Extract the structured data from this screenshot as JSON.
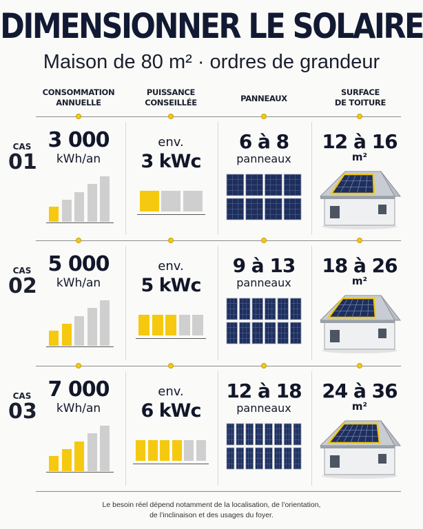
{
  "title": "DIMENSIONNER LE SOLAIRE",
  "subtitle": "Maison de 80 m² · ordres de grandeur",
  "columns": {
    "consumption": [
      "CONSOMMATION",
      "ANNUELLE"
    ],
    "power": [
      "PUISSANCE",
      "CONSEILLÉE"
    ],
    "panels": [
      "PANNEAUX"
    ],
    "roof": [
      "SURFACE",
      "DE TOITURE"
    ]
  },
  "cases": [
    {
      "cas_label": "CAS",
      "cas_num": "01",
      "consumption_value": "3 000",
      "consumption_unit": "kWh/an",
      "consumption_bars_yellow": 1,
      "power_prefix": "env.",
      "power_value": "3 kWc",
      "power_blocks_yellow": 1,
      "power_blocks_total": 3,
      "panels_value": "6 à 8",
      "panels_unit": "panneaux",
      "panel_grid": [
        4,
        2
      ],
      "roof_value": "12 à 16",
      "roof_unit": "m²"
    },
    {
      "cas_label": "CAS",
      "cas_num": "02",
      "consumption_value": "5 000",
      "consumption_unit": "kWh/an",
      "consumption_bars_yellow": 2,
      "power_prefix": "env.",
      "power_value": "5 kWc",
      "power_blocks_yellow": 3,
      "power_blocks_total": 5,
      "panels_value": "9 à 13",
      "panels_unit": "panneaux",
      "panel_grid": [
        6,
        2
      ],
      "roof_value": "18 à 26",
      "roof_unit": "m²"
    },
    {
      "cas_label": "CAS",
      "cas_num": "03",
      "consumption_value": "7 000",
      "consumption_unit": "kWh/an",
      "consumption_bars_yellow": 3,
      "power_prefix": "env.",
      "power_value": "6 kWc",
      "power_blocks_yellow": 4,
      "power_blocks_total": 6,
      "panels_value": "12 à 18",
      "panels_unit": "panneaux",
      "panel_grid": [
        8,
        2
      ],
      "roof_value": "24 à 36",
      "roof_unit": "m²"
    }
  ],
  "footer": [
    "Le besoin réel dépend notamment de la localisation, de l’orientation,",
    "de l’inclinaison et des usages du foyer."
  ],
  "colors": {
    "yellow": "#f5c90f",
    "gray": "#cfcfcf",
    "navy": "#1b2a4a",
    "panel": "#1e2f5e"
  }
}
